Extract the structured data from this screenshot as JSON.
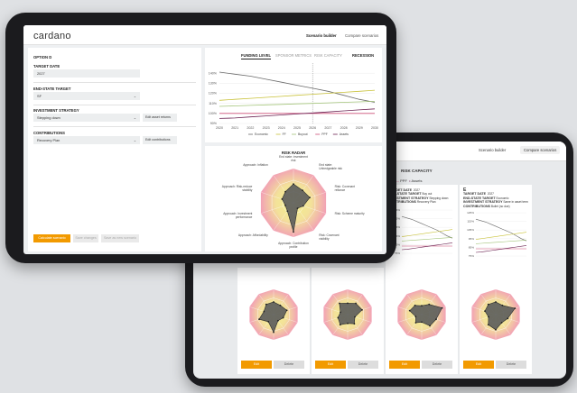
{
  "front": {
    "logo": "cardano",
    "nav": {
      "active": "Scenario builder",
      "other": "Compare scenarios"
    },
    "form": {
      "option": "OPTION D",
      "target_date_label": "TARGET DATE",
      "target_date_value": "2027",
      "end_state_label": "END-STATE TARGET",
      "end_state_value": "SF",
      "strategy_label": "INVESTMENT STRATEGY",
      "strategy_value": "Stepping down",
      "strategy_button": "Edit asset returns",
      "contributions_label": "CONTRIBUTIONS",
      "contributions_value": "Recovery Plan",
      "contributions_button": "Edit contributions",
      "calculate_button": "Calculate scenario",
      "save_changes_button": "Save changes",
      "save_new_button": "Save as new scenario"
    },
    "chart_tabs": [
      "FUNDING LEVEL",
      "SPONSOR METRICS",
      "RISK CAPACITY"
    ],
    "chart_toggle": "RECESSION",
    "chart_data": {
      "type": "line",
      "x": [
        2020,
        2021,
        2022,
        2023,
        2024,
        2025,
        2026,
        2027,
        2028,
        2029,
        2030
      ],
      "ylim": [
        90,
        150
      ],
      "yticks": [
        "90%",
        "100%",
        "110%",
        "120%",
        "130%",
        "140%"
      ],
      "series": [
        {
          "name": "Economic",
          "color": "#6a6a6a",
          "values": [
            141,
            139,
            137,
            134,
            131,
            128,
            125,
            122,
            118,
            114,
            111
          ]
        },
        {
          "name": "FF",
          "color": "#c9c23a",
          "values": [
            113,
            114,
            115,
            116,
            117,
            118,
            119,
            120,
            121,
            122,
            123
          ]
        },
        {
          "name": "Buyout",
          "color": "#a3c47a",
          "values": [
            107,
            107.5,
            108,
            108.5,
            109,
            109.5,
            110,
            110.5,
            111,
            111.5,
            112
          ]
        },
        {
          "name": "PPF",
          "color": "#cc4d77",
          "values": [
            100,
            100,
            100,
            100,
            100,
            100,
            100,
            100,
            100,
            100,
            100
          ]
        },
        {
          "name": "Assets",
          "color": "#6b2151",
          "values": [
            95,
            95.5,
            96.5,
            97.5,
            98.5,
            99.5,
            100.5,
            101.5,
            102.5,
            103.5,
            104.5
          ]
        }
      ]
    },
    "radar": {
      "title": "RISK RADAR",
      "labels": [
        "End state: investment risk",
        "End state: Unhedgeable risk",
        "Risk: Covenant reliance",
        "Risk: Scheme maturity",
        "Risk: Covenant visibility",
        "Approach: Contribution profile",
        "Approach: Affordability",
        "Approach: Investment performance",
        "Approach: Risk-reduce stability",
        "Approach: Inflation"
      ],
      "values": [
        0.55,
        0.45,
        0.5,
        0.3,
        0.2,
        0.85,
        0.3,
        0.25,
        0.35,
        0.4
      ]
    }
  },
  "back": {
    "nav": {
      "other": "Scenario builder",
      "active": "Compare scenarios"
    },
    "legend_title": "RISK CAPACITY",
    "legend": [
      {
        "label": "PPF",
        "color": "#cc4d77"
      },
      {
        "label": "Assets",
        "color": "#6b2151"
      }
    ],
    "meta_rows": [
      "TARGET DATE",
      "END-STATE TARGET",
      "INVESTMENT STRATEGY",
      "CONTRIBUTIONS"
    ],
    "card_c": {
      "values": [
        "2027",
        "Buy out",
        "Stepping down",
        "Recovery Plan"
      ]
    },
    "card_e": {
      "letter": "E",
      "values": [
        "2027",
        "Economic",
        "Same in asset term",
        "Bullet (no due)"
      ]
    },
    "mini_yticks": [
      "125%",
      "115%",
      "105%",
      "95%",
      "85%",
      "75%"
    ],
    "cards": [
      {
        "edit": "Edit",
        "delete": "Delete",
        "values": [
          0.5,
          0.45,
          0.55,
          0.4,
          0.3,
          0.7,
          0.35,
          0.6,
          0.4,
          0.5
        ]
      },
      {
        "edit": "Edit",
        "delete": "Delete",
        "values": [
          0.45,
          0.55,
          0.6,
          0.3,
          0.45,
          0.35,
          0.5,
          0.4,
          0.3,
          0.55
        ]
      },
      {
        "edit": "Edit",
        "delete": "Delete",
        "values": [
          0.35,
          0.5,
          0.85,
          0.6,
          0.55,
          0.3,
          0.4,
          0.25,
          0.5,
          0.45
        ]
      },
      {
        "edit": "Edit",
        "delete": "Delete",
        "values": [
          0.5,
          0.45,
          0.8,
          0.5,
          0.4,
          0.6,
          0.5,
          0.3,
          0.45,
          0.5
        ]
      }
    ]
  }
}
